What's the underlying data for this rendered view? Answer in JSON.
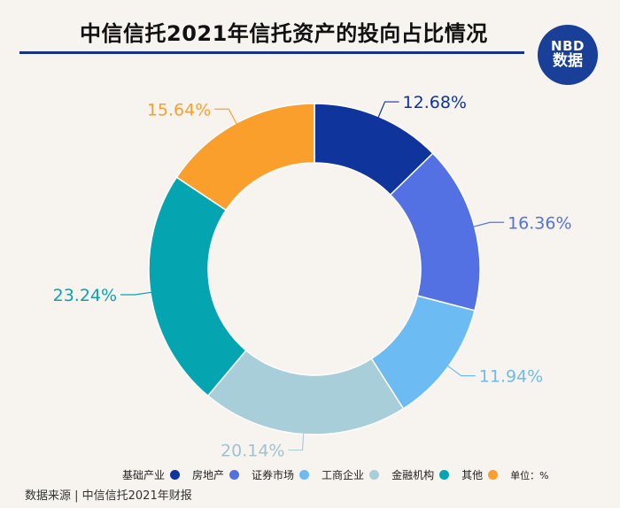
{
  "header": {
    "title": "中信信托2021年信托资产的投向占比情况"
  },
  "badge": {
    "line1": "NBD",
    "line2": "数据"
  },
  "chart_data": {
    "type": "pie",
    "title": "中信信托2021年信托资产的投向占比情况",
    "unit": "%",
    "start_angle_deg": 0,
    "categories": [
      "基础产业",
      "房地产",
      "证券市场",
      "工商企业",
      "金融机构",
      "其他"
    ],
    "values": [
      12.68,
      16.36,
      11.94,
      20.14,
      23.24,
      15.64
    ],
    "value_labels": [
      "12.68%",
      "16.36%",
      "11.94%",
      "20.14%",
      "23.24%",
      "15.64%"
    ],
    "colors": [
      "#0f349c",
      "#5471e4",
      "#6cbcf3",
      "#a8cfd9",
      "#04a5b0",
      "#fb9f2c"
    ]
  },
  "legend": {
    "items": [
      "基础产业",
      "房地产",
      "证券市场",
      "工商企业",
      "金融机构",
      "其他"
    ],
    "unit_label": "单位：%"
  },
  "footer": {
    "source": "数据来源 | 中信信托2021年财报"
  }
}
